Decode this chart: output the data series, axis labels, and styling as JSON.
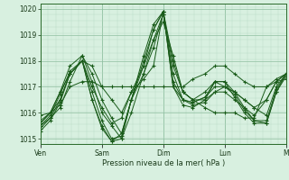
{
  "xlabel": "Pression niveau de la mer( hPa )",
  "bg_color": "#d8f0e0",
  "line_color": "#1a5c1a",
  "marker": "+",
  "ylim": [
    1014.8,
    1020.2
  ],
  "yticks": [
    1015,
    1016,
    1017,
    1018,
    1019,
    1020
  ],
  "day_labels": [
    "Ven",
    "Sam",
    "Dim",
    "Lun",
    "M"
  ],
  "day_positions": [
    0,
    0.25,
    0.5,
    0.75,
    1.0
  ],
  "grid_major_color": "#8fbfa0",
  "grid_minor_color": "#b8d8c4",
  "series": [
    {
      "x": [
        0.0,
        0.04,
        0.08,
        0.12,
        0.17,
        0.21,
        0.25,
        0.29,
        0.33,
        0.37,
        0.42,
        0.46,
        0.5,
        0.54,
        0.58,
        0.62,
        0.67,
        0.71,
        0.75,
        0.79,
        0.83,
        0.87,
        0.92,
        0.96,
        1.0
      ],
      "y": [
        1015.9,
        1016.0,
        1016.3,
        1017.0,
        1017.2,
        1017.2,
        1017.0,
        1017.0,
        1017.0,
        1017.0,
        1017.0,
        1017.0,
        1017.0,
        1017.0,
        1017.0,
        1017.3,
        1017.5,
        1017.8,
        1017.8,
        1017.5,
        1017.2,
        1017.0,
        1017.0,
        1017.2,
        1017.3
      ]
    },
    {
      "x": [
        0.0,
        0.04,
        0.08,
        0.12,
        0.17,
        0.21,
        0.25,
        0.29,
        0.33,
        0.37,
        0.42,
        0.46,
        0.5,
        0.54,
        0.58,
        0.62,
        0.67,
        0.71,
        0.75,
        0.79,
        0.83,
        0.87,
        0.92,
        0.96,
        1.0
      ],
      "y": [
        1015.7,
        1016.0,
        1016.5,
        1017.5,
        1018.0,
        1017.8,
        1017.0,
        1016.5,
        1016.0,
        1016.8,
        1017.3,
        1017.8,
        1019.9,
        1018.0,
        1016.8,
        1016.5,
        1016.5,
        1016.8,
        1017.0,
        1016.8,
        1016.5,
        1016.2,
        1015.9,
        1017.0,
        1017.5
      ]
    },
    {
      "x": [
        0.0,
        0.04,
        0.08,
        0.12,
        0.17,
        0.21,
        0.25,
        0.29,
        0.33,
        0.37,
        0.42,
        0.46,
        0.5,
        0.54,
        0.58,
        0.62,
        0.67,
        0.71,
        0.75,
        0.79,
        0.83,
        0.87,
        0.92,
        0.96,
        1.0
      ],
      "y": [
        1015.5,
        1015.8,
        1016.2,
        1017.2,
        1018.2,
        1017.5,
        1016.5,
        1015.8,
        1015.2,
        1016.5,
        1017.5,
        1018.5,
        1019.8,
        1017.8,
        1016.8,
        1016.5,
        1016.2,
        1016.0,
        1016.0,
        1016.0,
        1015.8,
        1015.8,
        1017.0,
        1017.3,
        1017.5
      ]
    },
    {
      "x": [
        0.0,
        0.04,
        0.08,
        0.12,
        0.17,
        0.21,
        0.25,
        0.29,
        0.33,
        0.37,
        0.42,
        0.46,
        0.5,
        0.54,
        0.58,
        0.62,
        0.67,
        0.71,
        0.75,
        0.79,
        0.83,
        0.87,
        0.92,
        0.96,
        1.0
      ],
      "y": [
        1015.6,
        1016.0,
        1016.8,
        1017.8,
        1018.2,
        1017.2,
        1016.0,
        1015.5,
        1015.0,
        1016.0,
        1017.5,
        1018.8,
        1019.8,
        1017.5,
        1016.5,
        1016.3,
        1016.4,
        1016.8,
        1016.8,
        1016.5,
        1016.2,
        1015.9,
        1016.5,
        1017.2,
        1017.5
      ]
    },
    {
      "x": [
        0.0,
        0.04,
        0.08,
        0.12,
        0.17,
        0.21,
        0.25,
        0.29,
        0.33,
        0.37,
        0.42,
        0.46,
        0.5,
        0.54,
        0.58,
        0.62,
        0.67,
        0.71,
        0.75,
        0.79,
        0.83,
        0.87,
        0.92,
        0.96,
        1.0
      ],
      "y": [
        1015.4,
        1015.8,
        1016.5,
        1017.5,
        1018.0,
        1016.5,
        1015.5,
        1014.9,
        1015.2,
        1016.5,
        1018.0,
        1019.2,
        1019.9,
        1017.2,
        1016.5,
        1016.4,
        1016.6,
        1017.2,
        1017.2,
        1016.8,
        1016.2,
        1015.7,
        1015.6,
        1016.8,
        1017.5
      ]
    },
    {
      "x": [
        0.0,
        0.04,
        0.08,
        0.12,
        0.17,
        0.21,
        0.25,
        0.29,
        0.33,
        0.37,
        0.42,
        0.46,
        0.5,
        0.54,
        0.58,
        0.62,
        0.67,
        0.71,
        0.75,
        0.79,
        0.83,
        0.87,
        0.92,
        0.96,
        1.0
      ],
      "y": [
        1015.5,
        1015.9,
        1016.7,
        1017.6,
        1018.0,
        1016.8,
        1015.7,
        1015.0,
        1015.1,
        1016.5,
        1017.8,
        1019.2,
        1019.9,
        1017.0,
        1016.5,
        1016.4,
        1016.6,
        1017.0,
        1017.0,
        1016.7,
        1016.1,
        1015.7,
        1015.7,
        1016.9,
        1017.5
      ]
    },
    {
      "x": [
        0.0,
        0.04,
        0.08,
        0.12,
        0.17,
        0.21,
        0.25,
        0.29,
        0.33,
        0.37,
        0.42,
        0.46,
        0.5,
        0.54,
        0.58,
        0.62,
        0.67,
        0.71,
        0.75,
        0.79,
        0.83,
        0.87,
        0.92,
        0.96,
        1.0
      ],
      "y": [
        1015.3,
        1015.7,
        1016.4,
        1017.5,
        1018.0,
        1016.5,
        1015.4,
        1014.9,
        1015.0,
        1016.5,
        1018.2,
        1019.4,
        1019.9,
        1017.0,
        1016.3,
        1016.2,
        1016.5,
        1017.2,
        1017.2,
        1016.6,
        1016.0,
        1015.6,
        1015.6,
        1016.8,
        1017.4
      ]
    },
    {
      "x": [
        0.0,
        0.04,
        0.08,
        0.12,
        0.17,
        0.21,
        0.25,
        0.29,
        0.33,
        0.37,
        0.42,
        0.46,
        0.5,
        0.54,
        0.58,
        0.62,
        0.67,
        0.71,
        0.75,
        0.79,
        0.83,
        0.87,
        0.92,
        0.96,
        1.0
      ],
      "y": [
        1015.6,
        1016.0,
        1016.8,
        1017.5,
        1018.0,
        1017.0,
        1016.2,
        1015.6,
        1015.8,
        1016.8,
        1017.8,
        1018.8,
        1019.5,
        1018.2,
        1016.8,
        1016.5,
        1016.8,
        1017.2,
        1017.0,
        1016.8,
        1016.5,
        1016.2,
        1016.5,
        1017.2,
        1017.5
      ]
    }
  ]
}
